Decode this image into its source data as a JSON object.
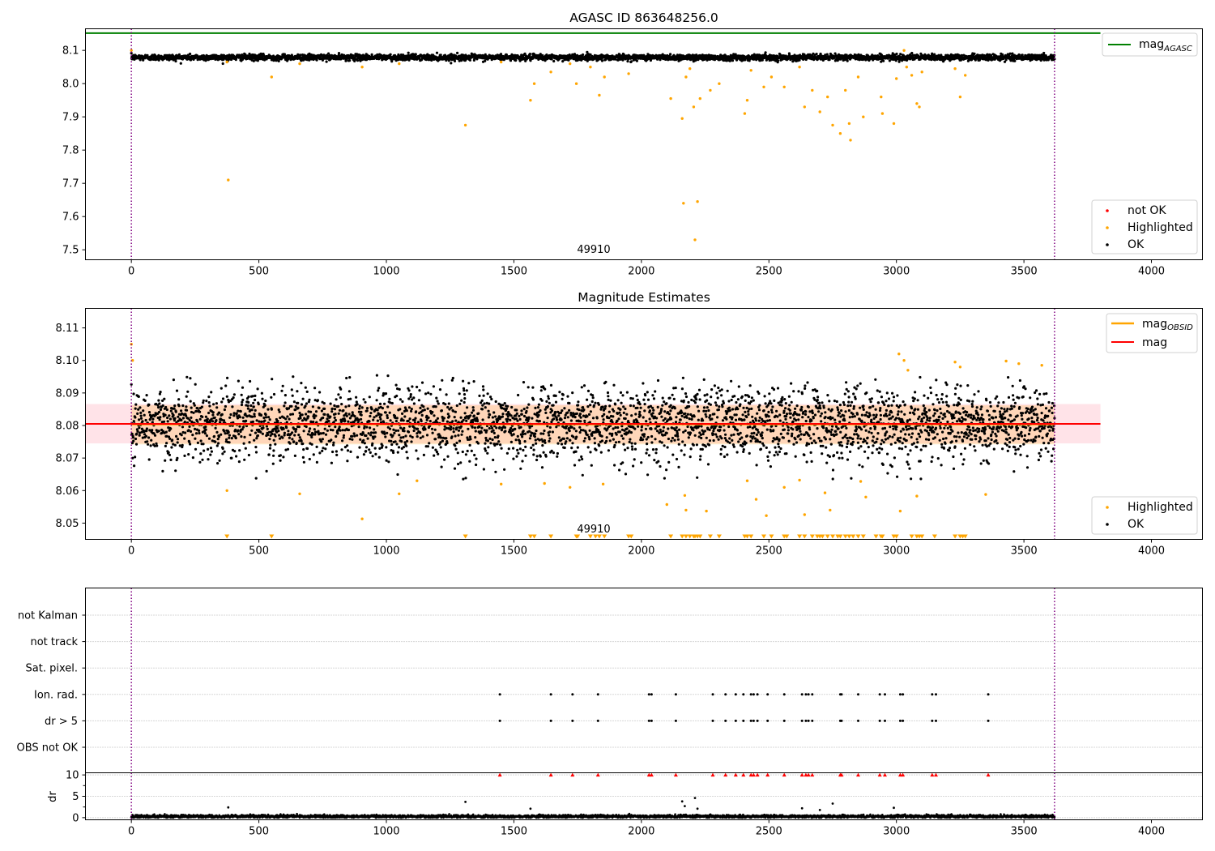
{
  "figure": {
    "colors": {
      "ok": "#000000",
      "highlighted": "#ffa500",
      "not_ok": "#ff0000",
      "mag_agasc": "#008000",
      "mag_obsid": "#ffa500",
      "mag": "#ff0000",
      "band": "#ffc0cb",
      "obs_boundary": "#800080",
      "grid": "#b0b0b0"
    }
  },
  "chart_data": [
    {
      "type": "scatter",
      "title": "AGASC ID 863648256.0",
      "xlim": [
        -180,
        4200
      ],
      "ylim": [
        7.47,
        8.165
      ],
      "xticks": [
        "0",
        "500",
        "1000",
        "1500",
        "2000",
        "2500",
        "3000",
        "3500",
        "4000"
      ],
      "yticks": [
        "7.5",
        "7.6",
        "7.7",
        "7.8",
        "7.9",
        "8.0",
        "8.1"
      ],
      "annotations": [
        {
          "text": "49910",
          "x": 1810,
          "y": 7.5
        }
      ],
      "reference_lines": [
        {
          "name": "mag_AGASC",
          "y": 8.152,
          "x": [
            -180,
            3800
          ]
        }
      ],
      "obs_boundaries": [
        0,
        3620
      ],
      "series_summary": {
        "OK": {
          "count_approx": 3620,
          "x_range": [
            0,
            3620
          ],
          "mean": 8.079,
          "std": 0.0045
        },
        "Highlighted": {
          "count_approx": 130,
          "points": [
            [
              0,
              8.1
            ],
            [
              375,
              8.065
            ],
            [
              380,
              7.71
            ],
            [
              550,
              8.02
            ],
            [
              660,
              8.06
            ],
            [
              905,
              8.05
            ],
            [
              1050,
              8.06
            ],
            [
              1310,
              7.875
            ],
            [
              1450,
              8.065
            ],
            [
              1565,
              7.95
            ],
            [
              1580,
              8.0
            ],
            [
              1645,
              8.035
            ],
            [
              1720,
              8.06
            ],
            [
              1745,
              8.0
            ],
            [
              1800,
              8.05
            ],
            [
              1835,
              7.965
            ],
            [
              1855,
              8.02
            ],
            [
              1950,
              8.03
            ],
            [
              2115,
              7.955
            ],
            [
              2160,
              7.895
            ],
            [
              2165,
              7.64
            ],
            [
              2175,
              8.02
            ],
            [
              2190,
              8.045
            ],
            [
              2205,
              7.93
            ],
            [
              2210,
              7.53
            ],
            [
              2220,
              7.645
            ],
            [
              2230,
              7.955
            ],
            [
              2270,
              7.98
            ],
            [
              2305,
              8.0
            ],
            [
              2405,
              7.91
            ],
            [
              2415,
              7.95
            ],
            [
              2430,
              8.04
            ],
            [
              2480,
              7.99
            ],
            [
              2510,
              8.02
            ],
            [
              2560,
              7.99
            ],
            [
              2620,
              8.05
            ],
            [
              2640,
              7.93
            ],
            [
              2670,
              7.98
            ],
            [
              2700,
              7.915
            ],
            [
              2730,
              7.96
            ],
            [
              2750,
              7.875
            ],
            [
              2780,
              7.85
            ],
            [
              2800,
              7.98
            ],
            [
              2815,
              7.88
            ],
            [
              2820,
              7.83
            ],
            [
              2850,
              8.02
            ],
            [
              2870,
              7.9
            ],
            [
              2940,
              7.96
            ],
            [
              2945,
              7.91
            ],
            [
              2990,
              7.88
            ],
            [
              3000,
              8.015
            ],
            [
              3030,
              8.1
            ],
            [
              3040,
              8.05
            ],
            [
              3060,
              8.025
            ],
            [
              3080,
              7.94
            ],
            [
              3090,
              7.93
            ],
            [
              3100,
              8.035
            ],
            [
              3230,
              8.045
            ],
            [
              3250,
              7.96
            ],
            [
              3270,
              8.025
            ]
          ]
        },
        "not OK": {
          "count_approx": 0
        }
      },
      "legends": [
        {
          "placement": "upper-right",
          "entries": [
            "mag_AGASC"
          ]
        },
        {
          "placement": "lower-right",
          "entries": [
            "not OK",
            "Highlighted",
            "OK"
          ]
        }
      ]
    },
    {
      "type": "scatter",
      "title": "Magnitude Estimates",
      "xlim": [
        -180,
        4200
      ],
      "ylim": [
        8.045,
        8.116
      ],
      "xticks": [
        "0",
        "500",
        "1000",
        "1500",
        "2000",
        "2500",
        "3000",
        "3500",
        "4000"
      ],
      "yticks": [
        "8.05",
        "8.06",
        "8.07",
        "8.08",
        "8.09",
        "8.10",
        "8.11"
      ],
      "annotations": [
        {
          "text": "49910",
          "x": 1810,
          "y": 8.046
        }
      ],
      "reference_lines": [
        {
          "name": "mag",
          "y": 8.0805,
          "x": [
            -180,
            3800
          ]
        },
        {
          "name": "mag_OBSID",
          "y": 8.0803,
          "x": [
            0,
            3620
          ]
        }
      ],
      "bands": [
        {
          "name": "mag band",
          "y": [
            8.0745,
            8.0866
          ],
          "x": [
            -180,
            3800
          ]
        },
        {
          "name": "mag_OBSID band",
          "y": [
            8.0742,
            8.0862
          ],
          "x": [
            0,
            3620
          ]
        }
      ],
      "obs_boundaries": [
        0,
        3620
      ],
      "series_summary": {
        "OK": {
          "count_approx": 3620,
          "x_range": [
            0,
            3620
          ],
          "mean": 8.0805,
          "std": 0.0055
        },
        "Highlighted": {
          "points": [
            [
              0,
              8.105
            ],
            [
              5,
              8.1
            ],
            [
              375,
              8.06
            ],
            [
              660,
              8.059
            ],
            [
              905,
              8.0513
            ],
            [
              1050,
              8.059
            ],
            [
              1120,
              8.063
            ],
            [
              1450,
              8.062
            ],
            [
              1620,
              8.0622
            ],
            [
              1720,
              8.061
            ],
            [
              1850,
              8.062
            ],
            [
              2100,
              8.0557
            ],
            [
              2170,
              8.0585
            ],
            [
              2175,
              8.054
            ],
            [
              2255,
              8.0537
            ],
            [
              2415,
              8.063
            ],
            [
              2450,
              8.0573
            ],
            [
              2490,
              8.0523
            ],
            [
              2560,
              8.061
            ],
            [
              2620,
              8.0632
            ],
            [
              2640,
              8.0526
            ],
            [
              2720,
              8.0593
            ],
            [
              2740,
              8.054
            ],
            [
              2860,
              8.0628
            ],
            [
              2880,
              8.058
            ],
            [
              3010,
              8.102
            ],
            [
              3015,
              8.0537
            ],
            [
              3030,
              8.1
            ],
            [
              3045,
              8.097
            ],
            [
              3080,
              8.0583
            ],
            [
              3230,
              8.0995
            ],
            [
              3250,
              8.098
            ],
            [
              3350,
              8.0588
            ],
            [
              3430,
              8.0998
            ],
            [
              3480,
              8.099
            ],
            [
              3570,
              8.0985
            ]
          ],
          "below_axis_markers_x": [
            375,
            550,
            1310,
            1565,
            1580,
            1645,
            1745,
            1750,
            1800,
            1820,
            1835,
            1855,
            1950,
            1960,
            2115,
            2160,
            2175,
            2190,
            2205,
            2210,
            2220,
            2230,
            2270,
            2305,
            2405,
            2415,
            2430,
            2480,
            2510,
            2560,
            2570,
            2620,
            2640,
            2670,
            2690,
            2700,
            2710,
            2730,
            2750,
            2770,
            2780,
            2800,
            2815,
            2830,
            2850,
            2870,
            2920,
            2940,
            2945,
            2990,
            3000,
            3060,
            3080,
            3090,
            3100,
            3150,
            3230,
            3250,
            3260,
            3270
          ]
        }
      },
      "legends": [
        {
          "placement": "upper-right",
          "entries": [
            "mag_OBSID",
            "mag"
          ]
        },
        {
          "placement": "lower-right",
          "entries": [
            "Highlighted",
            "OK"
          ]
        }
      ]
    },
    {
      "type": "scatter",
      "title": "",
      "xlim": [
        -180,
        4200
      ],
      "categories": [
        "not Kalman",
        "not track",
        "Sat. pixel.",
        "Ion. rad.",
        "dr > 5",
        "OBS not OK"
      ],
      "flag_points_x": {
        "not Kalman": [],
        "not track": [],
        "Sat. pixel.": [],
        "Ion. rad.": [
          1445,
          1645,
          1730,
          1830,
          2030,
          2040,
          2135,
          2280,
          2330,
          2370,
          2400,
          2430,
          2440,
          2455,
          2495,
          2560,
          2630,
          2645,
          2655,
          2670,
          2780,
          2785,
          2850,
          2935,
          2955,
          3015,
          3025,
          3140,
          3155,
          3360
        ],
        "dr > 5": [
          1445,
          1645,
          1730,
          1830,
          2030,
          2040,
          2135,
          2280,
          2330,
          2370,
          2400,
          2430,
          2440,
          2455,
          2495,
          2560,
          2630,
          2645,
          2655,
          2670,
          2780,
          2785,
          2850,
          2935,
          2955,
          3015,
          3025,
          3140,
          3155,
          3360
        ],
        "OBS not OK": []
      },
      "obs_boundaries": [
        0,
        3620
      ]
    },
    {
      "type": "scatter",
      "title": "",
      "ylabel": "dr",
      "xlim": [
        -180,
        4200
      ],
      "ylim": [
        -0.5,
        10.5
      ],
      "xticks": [
        "0",
        "500",
        "1000",
        "1500",
        "2000",
        "2500",
        "3000",
        "3500",
        "4000"
      ],
      "yticks": [
        "0",
        "5",
        "10"
      ],
      "obs_boundaries": [
        0,
        3620
      ],
      "series_summary": {
        "OK": {
          "count_approx": 3620,
          "x_range": [
            0,
            3620
          ],
          "typical_y": 0.3
        },
        "outliers": [
          [
            380,
            2.4
          ],
          [
            1310,
            3.7
          ],
          [
            1565,
            2.1
          ],
          [
            2160,
            3.8
          ],
          [
            2170,
            2.7
          ],
          [
            2210,
            4.6
          ],
          [
            2220,
            2.1
          ],
          [
            2630,
            2.2
          ],
          [
            2700,
            1.8
          ],
          [
            2750,
            3.3
          ],
          [
            2990,
            2.3
          ]
        ],
        "clipped_at_10_x": [
          1445,
          1645,
          1730,
          1830,
          2030,
          2040,
          2135,
          2280,
          2330,
          2370,
          2400,
          2430,
          2440,
          2455,
          2495,
          2560,
          2630,
          2645,
          2655,
          2670,
          2780,
          2785,
          2850,
          2935,
          2955,
          3015,
          3025,
          3140,
          3155,
          3360
        ]
      }
    }
  ],
  "legend_labels": {
    "mag_agasc_base": "mag",
    "mag_agasc_sub": "AGASC",
    "mag_obsid_base": "mag",
    "mag_obsid_sub": "OBSID",
    "mag": "mag",
    "not_ok": "not OK",
    "highlighted": "Highlighted",
    "ok": "OK"
  }
}
